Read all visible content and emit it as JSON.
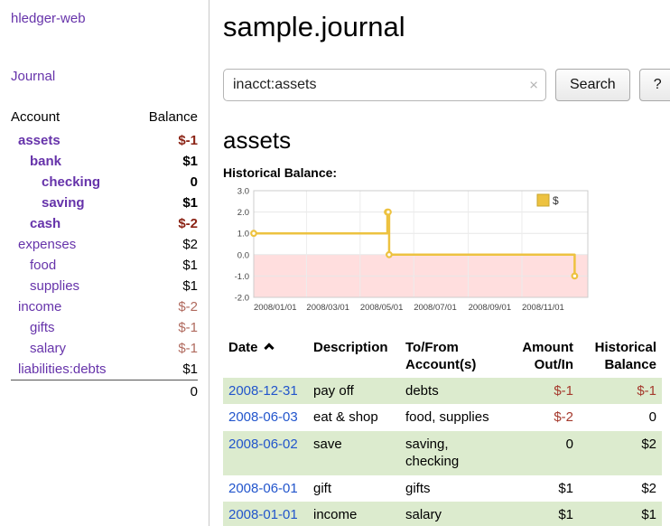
{
  "colors": {
    "link_purple": "#6633aa",
    "link_blue": "#2255cc",
    "negative_strong": "#8b2315",
    "negative_soft": "#b06a5e",
    "negative_register": "#a5392d",
    "row_green": "#dcebce",
    "chart_line": "#edc240",
    "chart_negative_fill": "#ffdede"
  },
  "sidebar": {
    "app_title": "hledger-web",
    "journal_link": "Journal",
    "accounts": {
      "header_account": "Account",
      "header_balance": "Balance",
      "rows": [
        {
          "name": "assets",
          "balance": "$-1",
          "depth": 1,
          "bold": true,
          "neg": true
        },
        {
          "name": "bank",
          "balance": "$1",
          "depth": 2,
          "bold": true,
          "neg": false
        },
        {
          "name": "checking",
          "balance": "0",
          "depth": 3,
          "bold": true,
          "neg": false
        },
        {
          "name": "saving",
          "balance": "$1",
          "depth": 3,
          "bold": true,
          "neg": false
        },
        {
          "name": "cash",
          "balance": "$-2",
          "depth": 2,
          "bold": true,
          "neg": true
        },
        {
          "name": "expenses",
          "balance": "$2",
          "depth": 1,
          "bold": false,
          "neg": false
        },
        {
          "name": "food",
          "balance": "$1",
          "depth": 2,
          "bold": false,
          "neg": false
        },
        {
          "name": "supplies",
          "balance": "$1",
          "depth": 2,
          "bold": false,
          "neg": false
        },
        {
          "name": "income",
          "balance": "$-2",
          "depth": 1,
          "bold": false,
          "neg": true
        },
        {
          "name": "gifts",
          "balance": "$-1",
          "depth": 2,
          "bold": false,
          "neg": true
        },
        {
          "name": "salary",
          "balance": "$-1",
          "depth": 2,
          "bold": false,
          "neg": true
        },
        {
          "name": "liabilities:debts",
          "balance": "$1",
          "depth": 1,
          "bold": false,
          "neg": false
        }
      ],
      "total": "0"
    }
  },
  "main": {
    "title": "sample.journal",
    "search": {
      "value": "inacct:assets",
      "clear": "×",
      "button": "Search",
      "help": "?"
    },
    "account_title": "assets",
    "chart_title": "Historical Balance:"
  },
  "chart_data": {
    "type": "line",
    "step": true,
    "title": "Historical Balance:",
    "xlabel": "",
    "ylabel": "",
    "ylim": [
      -2.0,
      3.0
    ],
    "yticks": [
      "3.0",
      "2.0",
      "1.0",
      "0.0",
      "-1.0",
      "-2.0"
    ],
    "xticks": [
      "2008/01/01",
      "2008/03/01",
      "2008/05/01",
      "2008/07/01",
      "2008/09/01",
      "2008/11/01"
    ],
    "legend_position": "top-right",
    "grid": true,
    "series": [
      {
        "name": "$",
        "points": [
          {
            "date": "2008-01-01",
            "value": 1
          },
          {
            "date": "2008-06-01",
            "value": 2
          },
          {
            "date": "2008-06-02",
            "value": 2
          },
          {
            "date": "2008-06-03",
            "value": 0
          },
          {
            "date": "2008-12-31",
            "value": -1
          }
        ]
      }
    ]
  },
  "register": {
    "headers": {
      "date": "Date",
      "description": "Description",
      "account": "To/From Account(s)",
      "amount": "Amount Out/In",
      "balance": "Historical Balance"
    },
    "rows": [
      {
        "date": "2008-12-31",
        "description": "pay off",
        "accounts": "debts",
        "amount": "$-1",
        "balance": "$-1",
        "amount_neg": true,
        "balance_neg": true,
        "green": true
      },
      {
        "date": "2008-06-03",
        "description": "eat & shop",
        "accounts": "food, supplies",
        "amount": "$-2",
        "balance": "0",
        "amount_neg": true,
        "balance_neg": false,
        "green": false
      },
      {
        "date": "2008-06-02",
        "description": "save",
        "accounts": "saving, checking",
        "amount": "0",
        "balance": "$2",
        "amount_neg": false,
        "balance_neg": false,
        "green": true
      },
      {
        "date": "2008-06-01",
        "description": "gift",
        "accounts": "gifts",
        "amount": "$1",
        "balance": "$2",
        "amount_neg": false,
        "balance_neg": false,
        "green": false
      },
      {
        "date": "2008-01-01",
        "description": "income",
        "accounts": "salary",
        "amount": "$1",
        "balance": "$1",
        "amount_neg": false,
        "balance_neg": false,
        "green": true
      }
    ]
  }
}
